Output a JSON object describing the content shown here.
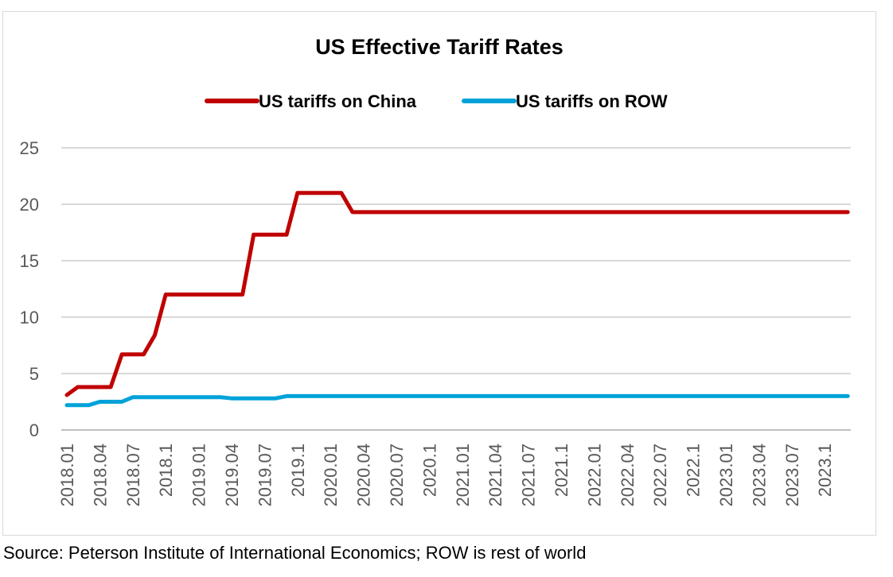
{
  "source_note": "Source: Peterson Institute of International Economics; ROW is rest of world",
  "chart_data": {
    "type": "line",
    "title": "US Effective Tariff Rates",
    "xlabel": "",
    "ylabel": "",
    "ylim": [
      0,
      25
    ],
    "yticks": [
      0,
      5,
      10,
      15,
      20,
      25
    ],
    "grid": true,
    "legend_position": "top",
    "x_tick_labels": [
      "2018.01",
      "2018.04",
      "2018.07",
      "2018.1",
      "2019.01",
      "2019.04",
      "2019.07",
      "2019.1",
      "2020.01",
      "2020.04",
      "2020.07",
      "2020.1",
      "2021.01",
      "2021.04",
      "2021.07",
      "2021.1",
      "2022.01",
      "2022.04",
      "2022.07",
      "2022.1",
      "2023.01",
      "2023.04",
      "2023.07",
      "2023.1"
    ],
    "x_index": [
      0,
      1,
      2,
      3,
      4,
      5,
      6,
      7,
      8,
      9,
      10,
      11,
      12,
      13,
      14,
      15,
      16,
      17,
      18,
      19,
      20,
      21,
      22,
      23,
      23.7
    ],
    "series": [
      {
        "name": "US tariffs on China",
        "color": "#c00000",
        "points": [
          [
            0,
            3.1
          ],
          [
            0.33,
            3.8
          ],
          [
            1.33,
            3.8
          ],
          [
            1.67,
            6.7
          ],
          [
            2.33,
            6.7
          ],
          [
            2.67,
            8.4
          ],
          [
            3.0,
            12.0
          ],
          [
            5.33,
            12.0
          ],
          [
            5.67,
            17.3
          ],
          [
            6.67,
            17.3
          ],
          [
            7.0,
            21.0
          ],
          [
            8.33,
            21.0
          ],
          [
            8.67,
            19.3
          ],
          [
            23.7,
            19.3
          ]
        ]
      },
      {
        "name": "US tariffs on ROW",
        "color": "#00a2d9",
        "points": [
          [
            0,
            2.2
          ],
          [
            0.67,
            2.2
          ],
          [
            1.0,
            2.5
          ],
          [
            1.67,
            2.5
          ],
          [
            2.0,
            2.9
          ],
          [
            4.67,
            2.9
          ],
          [
            5.0,
            2.8
          ],
          [
            6.33,
            2.8
          ],
          [
            6.67,
            3.0
          ],
          [
            23.7,
            3.0
          ]
        ]
      }
    ]
  }
}
